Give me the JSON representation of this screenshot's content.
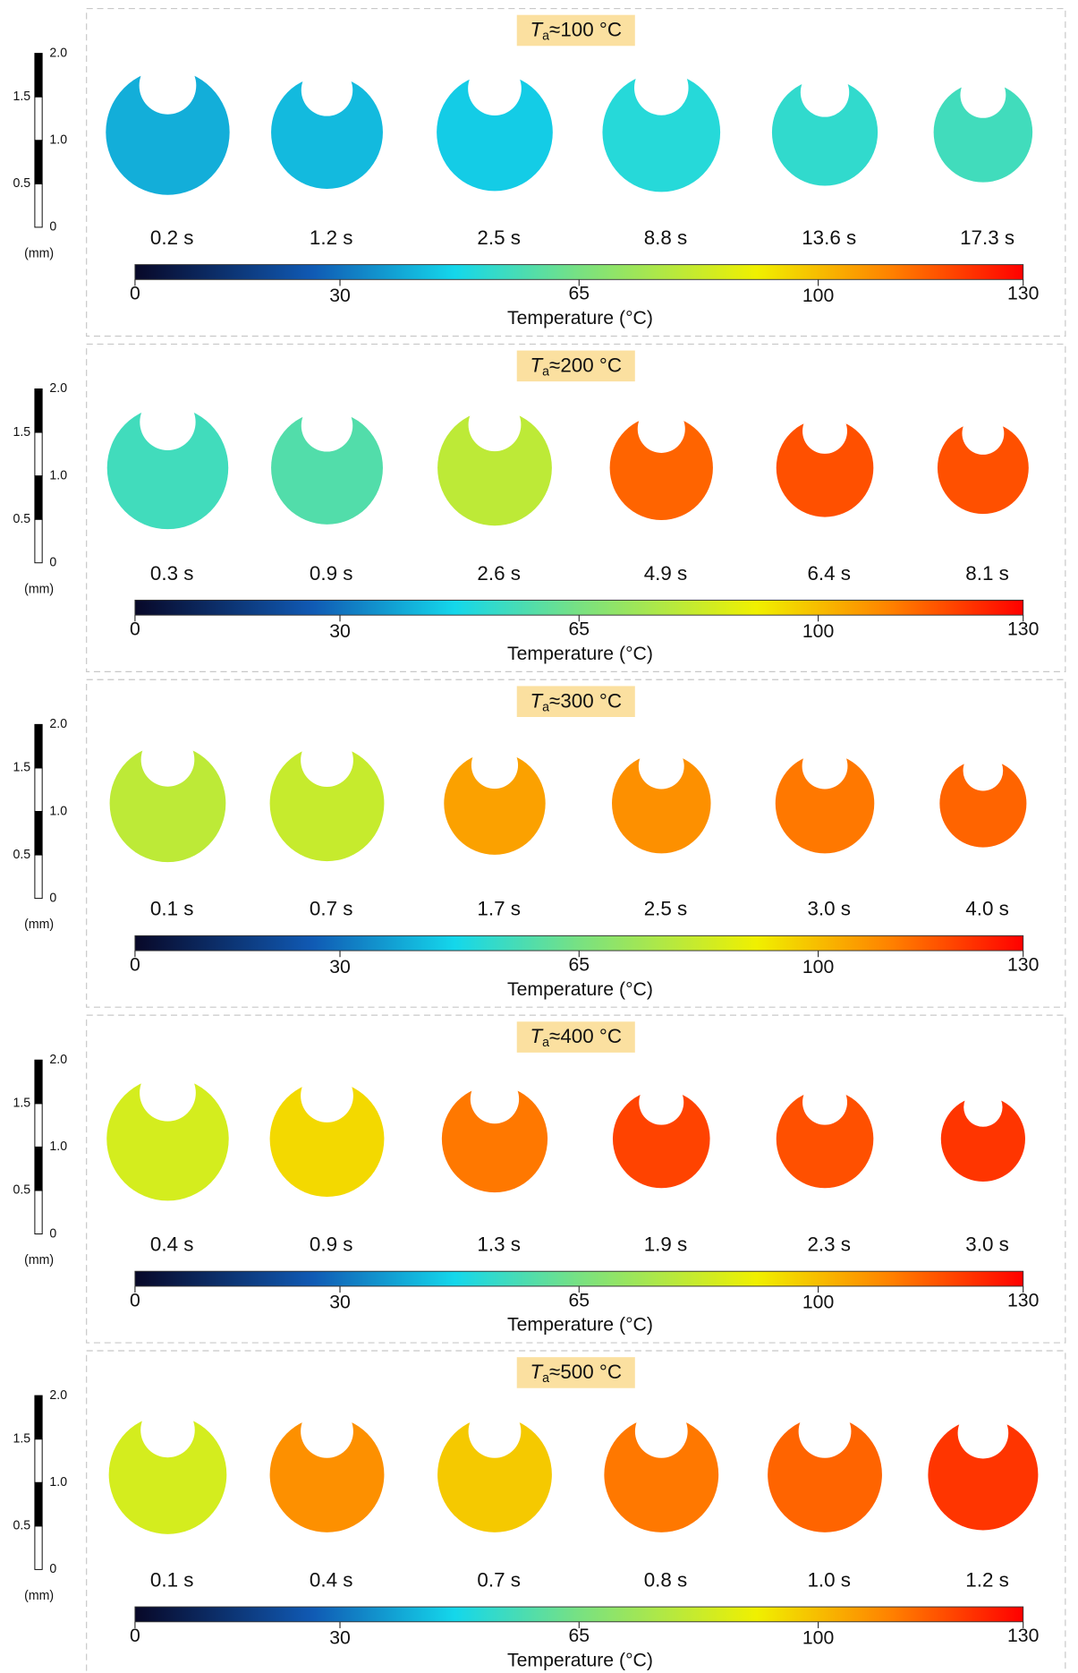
{
  "scale_bar": {
    "lim": [
      0,
      2
    ],
    "ticks": [
      0,
      0.5,
      {
        "value": 1,
        "label": "1.0"
      },
      1.5,
      {
        "value": 2,
        "label": "2.0"
      }
    ],
    "unit": "(mm)"
  },
  "colorbar": {
    "lim": [
      0,
      130
    ],
    "ticks": [
      0,
      30,
      65,
      100,
      130
    ],
    "label": "Temperature (°C)"
  },
  "panels": [
    {
      "title": {
        "symbol": "T",
        "subscript": "a",
        "text": "≈100 °C"
      },
      "times": [
        "0.2 s",
        "1.2 s",
        "2.5 s",
        "8.8 s",
        "13.6 s",
        "17.3 s"
      ],
      "temperatures": [
        40,
        42,
        45,
        50,
        52,
        55
      ],
      "diameters_mm": [
        1.44,
        1.3,
        1.35,
        1.37,
        1.23,
        1.15
      ]
    },
    {
      "title": {
        "symbol": "T",
        "subscript": "a",
        "text": "≈200 °C"
      },
      "times": [
        "0.3 s",
        "0.9 s",
        "2.6 s",
        "4.9 s",
        "6.4 s",
        "8.1 s"
      ],
      "temperatures": [
        55,
        58,
        80,
        115,
        118,
        118
      ],
      "diameters_mm": [
        1.41,
        1.3,
        1.33,
        1.2,
        1.13,
        1.06
      ]
    },
    {
      "title": {
        "symbol": "T",
        "subscript": "a",
        "text": "≈300 °C"
      },
      "times": [
        "0.1 s",
        "0.7 s",
        "1.7 s",
        "2.5 s",
        "3.0 s",
        "4.0 s"
      ],
      "temperatures": [
        80,
        82,
        105,
        108,
        112,
        115
      ],
      "diameters_mm": [
        1.35,
        1.33,
        1.18,
        1.15,
        1.15,
        1.01
      ]
    },
    {
      "title": {
        "symbol": "T",
        "subscript": "a",
        "text": "≈400 °C"
      },
      "times": [
        "0.4 s",
        "0.9 s",
        "1.3 s",
        "1.9 s",
        "2.3 s",
        "3.0 s"
      ],
      "temperatures": [
        85,
        95,
        112,
        120,
        118,
        122
      ],
      "diameters_mm": [
        1.42,
        1.33,
        1.23,
        1.13,
        1.13,
        0.98
      ]
    },
    {
      "title": {
        "symbol": "T",
        "subscript": "a",
        "text": "≈500 °C"
      },
      "times": [
        "0.1 s",
        "0.4 s",
        "0.7 s",
        "0.8 s",
        "1.0 s",
        "1.2 s"
      ],
      "temperatures": [
        85,
        108,
        98,
        112,
        115,
        122
      ],
      "diameters_mm": [
        1.37,
        1.33,
        1.33,
        1.33,
        1.33,
        1.28
      ]
    }
  ]
}
